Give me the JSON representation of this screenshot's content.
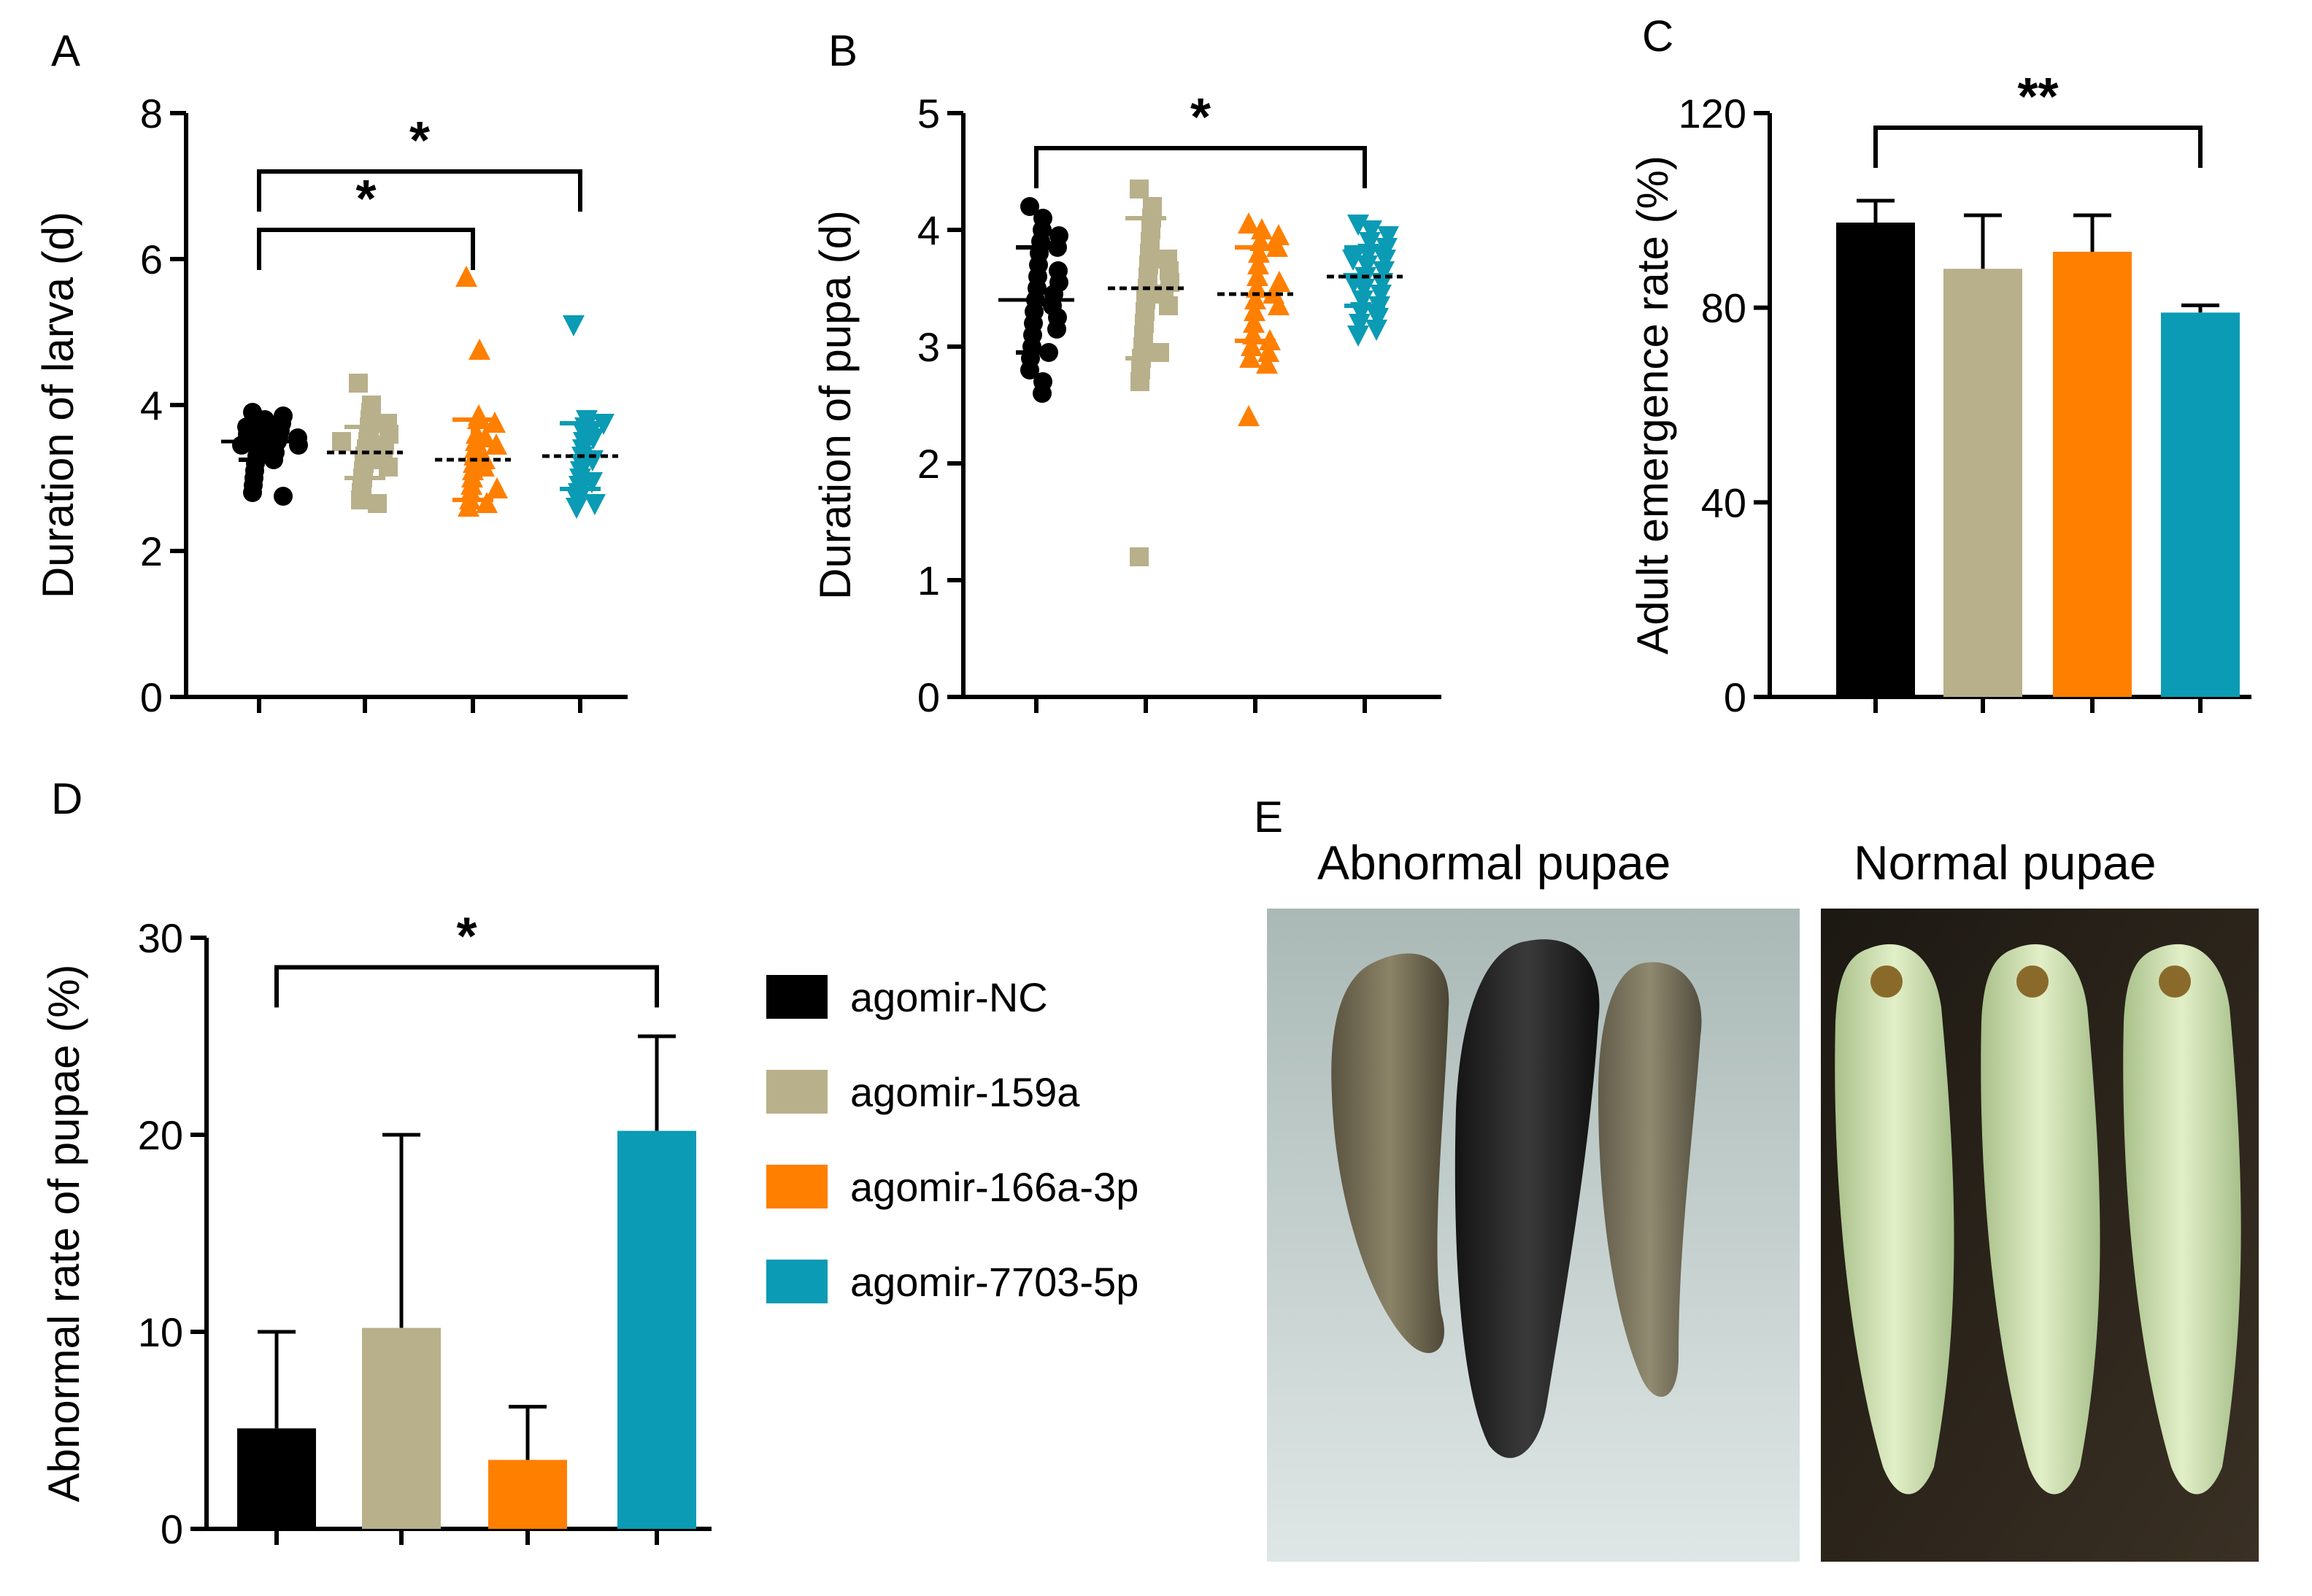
{
  "colors": {
    "agomir_nc": "#000000",
    "agomir_159a": "#b8b08b",
    "agomir_166a": "#ff7f00",
    "agomir_7703": "#0b9bb4"
  },
  "legend": [
    {
      "label": "agomir-NC",
      "color": "#000000"
    },
    {
      "label": "agomir-159a",
      "color": "#b8b08b"
    },
    {
      "label": "agomir-166a-3p",
      "color": "#ff7f00"
    },
    {
      "label": "agomir-7703-5p",
      "color": "#0b9bb4"
    }
  ],
  "chart_data": [
    {
      "panel": "A",
      "type": "scatter",
      "ylabel": "Duration of larva (d)",
      "ylim": [
        0,
        8
      ],
      "yticks": [
        "0",
        "2",
        "4",
        "6",
        "8"
      ],
      "groups": [
        {
          "name": "agomir-NC",
          "mean": 3.5,
          "sd": 0.25,
          "marker": "circle",
          "points": [
            3.9,
            3.85,
            3.8,
            3.75,
            3.7,
            3.65,
            3.6,
            3.55,
            3.5,
            3.5,
            3.45,
            3.4,
            3.35,
            3.3,
            3.25,
            3.2,
            3.1,
            3.0,
            2.9,
            2.8,
            2.75,
            3.6,
            3.7,
            3.45,
            3.55
          ]
        },
        {
          "name": "agomir-159a",
          "mean": 3.35,
          "sd": 0.35,
          "marker": "square",
          "points": [
            4.3,
            4.0,
            3.9,
            3.8,
            3.7,
            3.6,
            3.5,
            3.45,
            3.4,
            3.35,
            3.3,
            3.2,
            3.1,
            3.0,
            2.9,
            2.8,
            2.7,
            2.65,
            3.5,
            3.25,
            3.6,
            3.15,
            3.75
          ]
        },
        {
          "name": "agomir-166a-3p",
          "mean": 3.25,
          "sd": 0.55,
          "marker": "triangle-up",
          "points": [
            5.75,
            4.75,
            3.85,
            3.8,
            3.75,
            3.6,
            3.5,
            3.4,
            3.3,
            3.2,
            3.1,
            3.0,
            2.9,
            2.8,
            2.7,
            2.65,
            2.6,
            3.55,
            3.25,
            3.15,
            2.85,
            3.45
          ]
        },
        {
          "name": "agomir-7703-5p",
          "mean": 3.3,
          "sd": 0.45,
          "marker": "triangle-down",
          "points": [
            5.1,
            3.8,
            3.75,
            3.7,
            3.6,
            3.5,
            3.4,
            3.3,
            3.2,
            3.1,
            3.0,
            2.9,
            2.8,
            2.7,
            2.65,
            2.6,
            3.55,
            3.25,
            2.95,
            3.65
          ]
        }
      ],
      "brackets": [
        {
          "from": 0,
          "to": 2,
          "y": 6.4,
          "label": "*"
        },
        {
          "from": 0,
          "to": 3,
          "y": 7.2,
          "label": "*"
        }
      ]
    },
    {
      "panel": "B",
      "type": "scatter",
      "ylabel": "Duration of pupa (d)",
      "ylim": [
        0,
        5
      ],
      "yticks": [
        "0",
        "1",
        "2",
        "3",
        "4",
        "5"
      ],
      "groups": [
        {
          "name": "agomir-NC",
          "mean": 3.4,
          "sd": 0.45,
          "marker": "circle",
          "points": [
            4.2,
            4.1,
            4.0,
            3.95,
            3.9,
            3.85,
            3.8,
            3.7,
            3.6,
            3.5,
            3.45,
            3.4,
            3.35,
            3.3,
            3.2,
            3.1,
            3.0,
            2.95,
            2.9,
            2.8,
            2.7,
            2.6,
            3.55,
            3.65,
            3.25,
            3.15
          ]
        },
        {
          "name": "agomir-159a",
          "mean": 3.5,
          "sd": 0.6,
          "marker": "square",
          "points": [
            4.35,
            4.2,
            4.1,
            4.0,
            3.9,
            3.8,
            3.7,
            3.6,
            3.5,
            3.45,
            3.4,
            3.3,
            3.2,
            3.1,
            3.0,
            2.95,
            2.9,
            2.8,
            2.7,
            1.2,
            3.55,
            3.65,
            3.35,
            3.75
          ]
        },
        {
          "name": "agomir-166a-3p",
          "mean": 3.45,
          "sd": 0.4,
          "marker": "triangle-up",
          "points": [
            4.05,
            4.0,
            3.95,
            3.9,
            3.85,
            3.8,
            3.7,
            3.6,
            3.5,
            3.45,
            3.4,
            3.3,
            3.2,
            3.1,
            3.05,
            3.0,
            2.95,
            2.9,
            2.85,
            2.4,
            3.55,
            3.35
          ]
        },
        {
          "name": "agomir-7703-5p",
          "mean": 3.6,
          "sd": 0.25,
          "marker": "triangle-down",
          "points": [
            4.05,
            4.0,
            3.95,
            3.9,
            3.85,
            3.8,
            3.75,
            3.7,
            3.65,
            3.6,
            3.55,
            3.5,
            3.45,
            3.4,
            3.35,
            3.3,
            3.25,
            3.2,
            3.15,
            3.1,
            3.55,
            3.75
          ]
        }
      ],
      "brackets": [
        {
          "from": 0,
          "to": 3,
          "y": 4.7,
          "label": "*"
        }
      ]
    },
    {
      "panel": "C",
      "type": "bar",
      "ylabel": "Adult emergence rate (%)",
      "ylim": [
        0,
        120
      ],
      "yticks": [
        "0",
        "40",
        "80",
        "120"
      ],
      "categories": [
        "agomir-NC",
        "agomir-159a",
        "agomir-166a-3p",
        "agomir-7703-5p"
      ],
      "values": [
        97.5,
        88,
        91.5,
        79
      ],
      "errors": [
        4.5,
        11,
        7.5,
        1.5
      ],
      "brackets": [
        {
          "from": 0,
          "to": 3,
          "y": 117,
          "label": "**"
        }
      ]
    },
    {
      "panel": "D",
      "type": "bar",
      "ylabel": "Abnormal rate of pupae (%)",
      "ylim": [
        0,
        30
      ],
      "yticks": [
        "0",
        "10",
        "20",
        "30"
      ],
      "categories": [
        "agomir-NC",
        "agomir-159a",
        "agomir-166a-3p",
        "agomir-7703-5p"
      ],
      "values": [
        5.1,
        10.2,
        3.5,
        20.2
      ],
      "errors": [
        4.9,
        9.8,
        2.7,
        4.8
      ],
      "brackets": [
        {
          "from": 0,
          "to": 3,
          "y": 28.5,
          "label": "*"
        }
      ]
    }
  ],
  "panel_e": {
    "label": "E",
    "abnormal_title": "Abnormal pupae",
    "normal_title": "Normal pupae"
  }
}
